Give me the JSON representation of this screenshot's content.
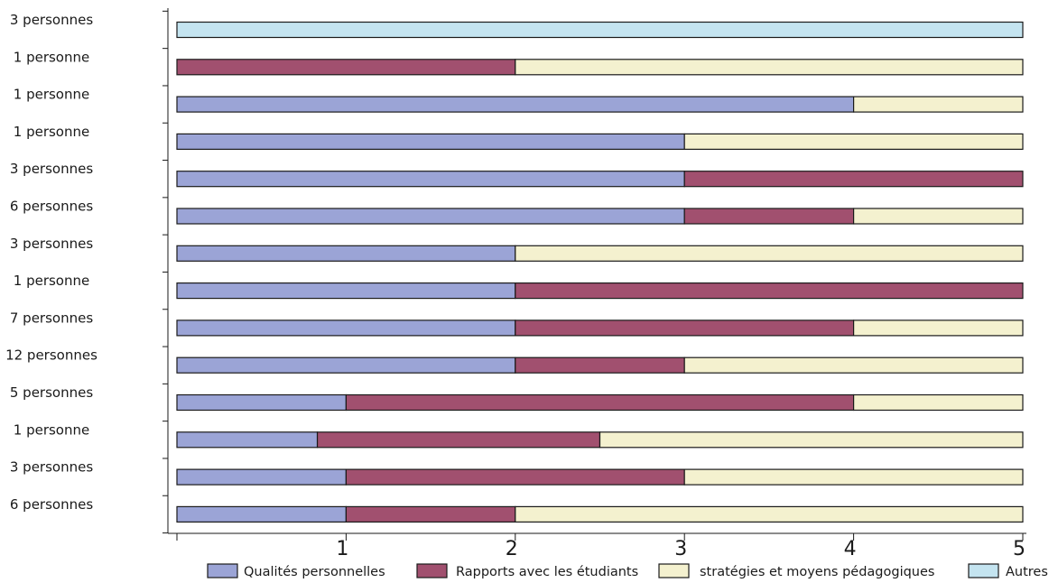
{
  "chart_data": {
    "type": "bar",
    "orientation": "horizontal",
    "stacked": true,
    "categories": [
      "3 personnes",
      "1 personne",
      "1 personne",
      "1 personne",
      "3 personnes",
      "6 personnes",
      "3 personnes",
      "1 personne",
      "7 personnes",
      "12 personnes",
      "5 personnes",
      "1 personne",
      "3 personnes",
      "6 personnes"
    ],
    "series": [
      {
        "name": "Qualités personnelles",
        "color": "#9ba4d6",
        "values": [
          0,
          0,
          4,
          3,
          3,
          3,
          2,
          2,
          2,
          2,
          1,
          0.83,
          1,
          1
        ]
      },
      {
        "name": "Rapports avec les  étudiants",
        "color": "#a1506f",
        "values": [
          0,
          2,
          0,
          0,
          2,
          1,
          0,
          3,
          2,
          1,
          3,
          1.67,
          2,
          1
        ]
      },
      {
        "name": "stratégies et moyens pédagogiques",
        "color": "#f4f1cf",
        "values": [
          0,
          3,
          1,
          2,
          0,
          1,
          3,
          0,
          1,
          2,
          1,
          2.5,
          2,
          3
        ]
      },
      {
        "name": "Autres",
        "color": "#c4e4f0",
        "values": [
          5,
          0,
          0,
          0,
          0,
          0,
          0,
          0,
          0,
          0,
          0,
          0,
          0,
          0
        ]
      }
    ],
    "xlim": [
      0,
      5
    ],
    "xticks": [
      "1",
      "2",
      "3",
      "4",
      "5"
    ],
    "title": "",
    "xlabel": "",
    "ylabel": "",
    "legend_position": "bottom",
    "grid": false
  }
}
